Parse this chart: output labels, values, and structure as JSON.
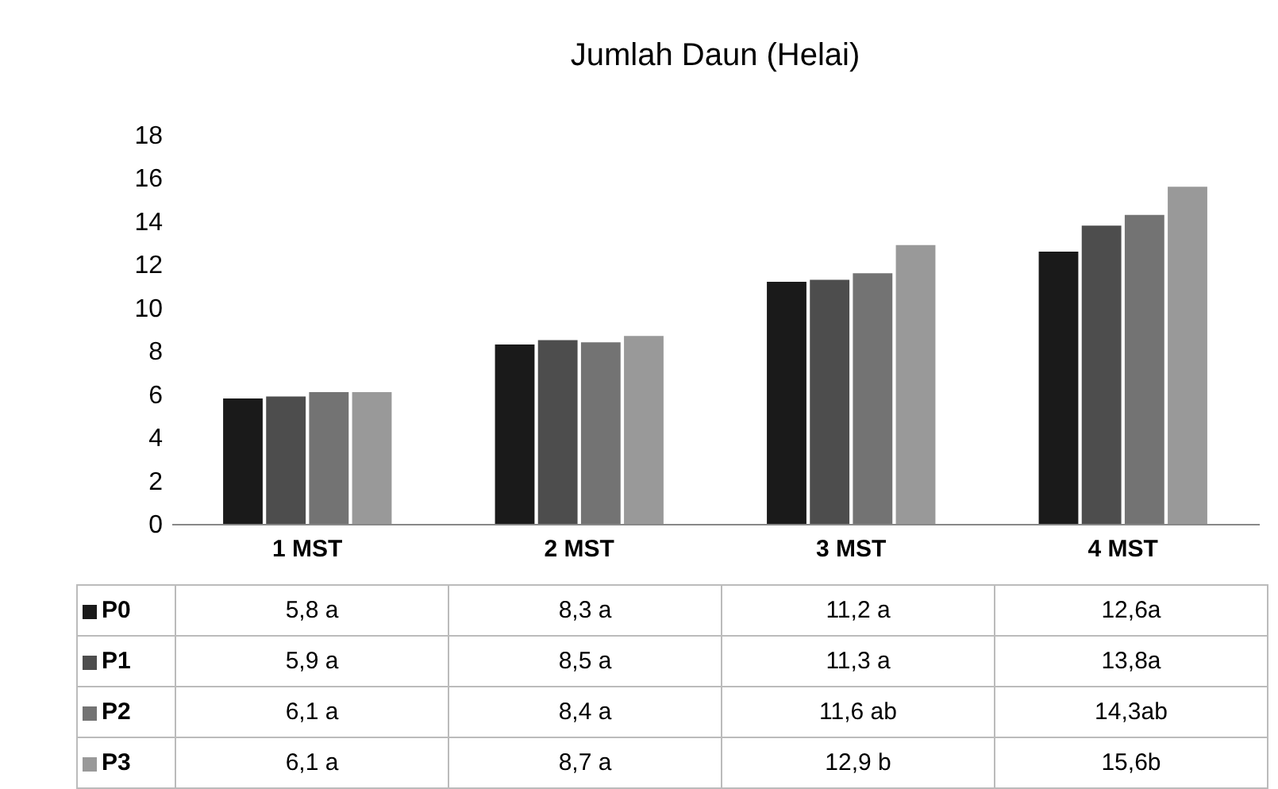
{
  "chart_data": {
    "type": "bar",
    "title": "Jumlah Daun (Helai)",
    "categories": [
      "1 MST",
      "2 MST",
      "3 MST",
      "4 MST"
    ],
    "series": [
      {
        "name": "P0",
        "color": "#1a1a1a",
        "values": [
          5.8,
          8.3,
          11.2,
          12.6
        ],
        "value_labels": [
          "5,8 a",
          "8,3 a",
          "11,2 a",
          "12,6a"
        ]
      },
      {
        "name": "P1",
        "color": "#4d4d4d",
        "values": [
          5.9,
          8.5,
          11.3,
          13.8
        ],
        "value_labels": [
          "5,9 a",
          "8,5 a",
          "11,3 a",
          "13,8a"
        ]
      },
      {
        "name": "P2",
        "color": "#737373",
        "values": [
          6.1,
          8.4,
          11.6,
          14.3
        ],
        "value_labels": [
          "6,1 a",
          "8,4 a",
          "11,6 ab",
          "14,3ab"
        ]
      },
      {
        "name": "P3",
        "color": "#999999",
        "values": [
          6.1,
          8.7,
          12.9,
          15.6
        ],
        "value_labels": [
          "6,1 a",
          "8,7 a",
          "12,9 b",
          "15,6b"
        ]
      }
    ],
    "ylim": [
      0,
      18
    ],
    "yticks": [
      0,
      2,
      4,
      6,
      8,
      10,
      12,
      14,
      16,
      18
    ],
    "grid": false,
    "legend": "bottom"
  }
}
